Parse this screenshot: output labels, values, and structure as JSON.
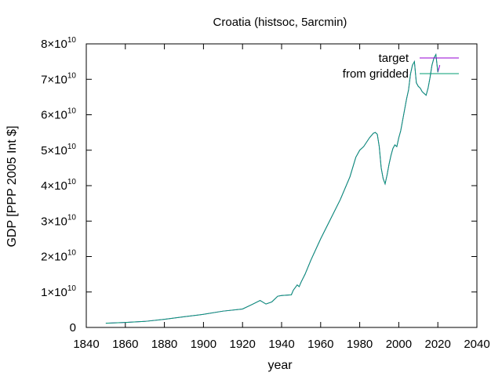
{
  "chart_data": {
    "type": "line",
    "title": "Croatia (histsoc, 5arcmin)",
    "xlabel": "year",
    "ylabel": "GDP [PPP 2005 Int $]",
    "xlim": [
      1840,
      2040
    ],
    "ylim": [
      0,
      80000000000
    ],
    "x_ticks": [
      "1840",
      "1860",
      "1880",
      "1900",
      "1920",
      "1940",
      "1960",
      "1980",
      "2000",
      "2020",
      "2040"
    ],
    "y_ticks": [
      {
        "value": 0,
        "mantissa": "0",
        "exponent": ""
      },
      {
        "value": 10000000000,
        "mantissa": "1×10",
        "exponent": "10"
      },
      {
        "value": 20000000000,
        "mantissa": "2×10",
        "exponent": "10"
      },
      {
        "value": 30000000000,
        "mantissa": "3×10",
        "exponent": "10"
      },
      {
        "value": 40000000000,
        "mantissa": "4×10",
        "exponent": "10"
      },
      {
        "value": 50000000000,
        "mantissa": "5×10",
        "exponent": "10"
      },
      {
        "value": 60000000000,
        "mantissa": "6×10",
        "exponent": "10"
      },
      {
        "value": 70000000000,
        "mantissa": "7×10",
        "exponent": "10"
      },
      {
        "value": 80000000000,
        "mantissa": "8×10",
        "exponent": "10"
      }
    ],
    "grid": false,
    "legend_position": "top-right",
    "series": [
      {
        "name": "target",
        "color": "#9400d3",
        "x": [
          1850,
          1860,
          1870,
          1880,
          1890,
          1900,
          1910,
          1920,
          1925,
          1929,
          1932,
          1935,
          1938,
          1940,
          1945,
          1946,
          1948,
          1949,
          1950,
          1952,
          1955,
          1960,
          1965,
          1970,
          1975,
          1978,
          1980,
          1982,
          1985,
          1987,
          1988,
          1989,
          1990,
          1991,
          1992,
          1993,
          1994,
          1995,
          1996,
          1997,
          1998,
          1999,
          2000,
          2001,
          2002,
          2003,
          2004,
          2005,
          2006,
          2007,
          2008,
          2009,
          2010,
          2011,
          2012,
          2013,
          2014,
          2015,
          2016,
          2017,
          2018,
          2019,
          2020,
          2021
        ],
        "y": [
          1200000000,
          1400000000,
          1700000000,
          2300000000,
          3000000000,
          3700000000,
          4600000000,
          5200000000,
          6500000000,
          7600000000,
          6600000000,
          7200000000,
          8800000000,
          9000000000,
          9200000000,
          10500000000,
          12000000000,
          11500000000,
          12800000000,
          15000000000,
          19000000000,
          25000000000,
          30500000000,
          36000000000,
          42500000000,
          48000000000,
          50000000000,
          51000000000,
          53500000000,
          54800000000,
          55000000000,
          54500000000,
          51000000000,
          45000000000,
          42000000000,
          40500000000,
          43000000000,
          46000000000,
          48500000000,
          50500000000,
          51500000000,
          51000000000,
          53500000000,
          55500000000,
          58500000000,
          61500000000,
          64500000000,
          67000000000,
          71500000000,
          74000000000,
          75000000000,
          69000000000,
          68000000000,
          67500000000,
          66500000000,
          66000000000,
          65500000000,
          67500000000,
          70500000000,
          74000000000,
          76000000000,
          77000000000,
          72000000000,
          74000000000
        ]
      },
      {
        "name": "from gridded",
        "color": "#009e73",
        "x": [
          1850,
          1860,
          1870,
          1880,
          1890,
          1900,
          1910,
          1920,
          1925,
          1929,
          1932,
          1935,
          1938,
          1940,
          1945,
          1946,
          1948,
          1949,
          1950,
          1952,
          1955,
          1960,
          1965,
          1970,
          1975,
          1978,
          1980,
          1982,
          1985,
          1987,
          1988,
          1989,
          1990,
          1991,
          1992,
          1993,
          1994,
          1995,
          1996,
          1997,
          1998,
          1999,
          2000,
          2001,
          2002,
          2003,
          2004,
          2005,
          2006,
          2007,
          2008,
          2009,
          2010,
          2011,
          2012,
          2013,
          2014,
          2015,
          2016,
          2017,
          2018,
          2019,
          2020
        ],
        "y": [
          1200000000,
          1400000000,
          1700000000,
          2300000000,
          3000000000,
          3700000000,
          4600000000,
          5200000000,
          6500000000,
          7600000000,
          6600000000,
          7200000000,
          8800000000,
          9000000000,
          9200000000,
          10500000000,
          12000000000,
          11500000000,
          12800000000,
          15000000000,
          19000000000,
          25000000000,
          30500000000,
          36000000000,
          42500000000,
          48000000000,
          50000000000,
          51000000000,
          53500000000,
          54800000000,
          55000000000,
          54500000000,
          51000000000,
          45000000000,
          42000000000,
          40500000000,
          43000000000,
          46000000000,
          48500000000,
          50500000000,
          51500000000,
          51000000000,
          53500000000,
          55500000000,
          58500000000,
          61500000000,
          64500000000,
          67000000000,
          71500000000,
          74000000000,
          75000000000,
          69000000000,
          68000000000,
          67500000000,
          66500000000,
          66000000000,
          65500000000,
          67500000000,
          70500000000,
          74000000000,
          76000000000,
          77000000000,
          72000000000
        ]
      }
    ]
  }
}
